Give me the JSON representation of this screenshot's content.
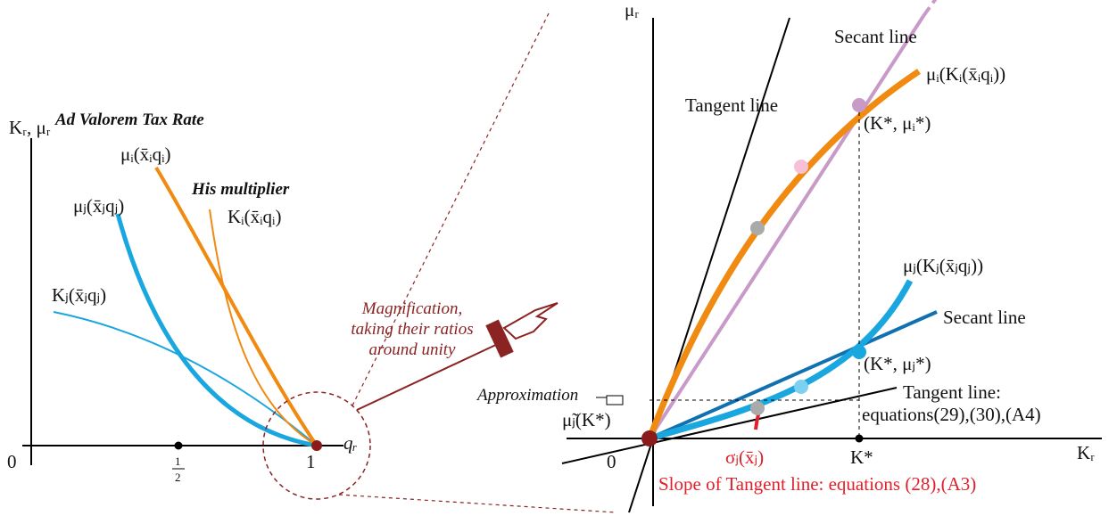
{
  "left_panel": {
    "y_axis_label": "Kᵣ, μᵣ",
    "title": "Ad Valorem Tax Rate",
    "mu_i_label": "μᵢ(x̄ᵢqᵢ)",
    "his_multiplier": "His multiplier",
    "k_i_label": "Kᵢ(x̄ᵢqᵢ)",
    "mu_j_label": "μⱼ(x̄ⱼqⱼ)",
    "k_j_label": "Kⱼ(x̄ⱼqⱼ)",
    "origin": "0",
    "half_numerator": "1",
    "half_denominator": "2",
    "one": "1",
    "x_axis_label": "qᵣ",
    "magnification": [
      "Magnification,",
      "taking their ratios",
      "around unity"
    ]
  },
  "right_panel": {
    "y_axis_label": "μᵣ",
    "secant_line_i": "Secant line",
    "mu_i_label": "μᵢ(Kᵢ(x̄ᵢqᵢ))",
    "tangent_line": "Tangent line",
    "point_i": "(K*, μᵢ*)",
    "mu_j_label": "μⱼ(Kⱼ(x̄ⱼqⱼ))",
    "secant_line_j": "Secant line",
    "point_j": "(K*, μⱼ*)",
    "approximation": "Approximation",
    "tangent_line_j": "Tangent line:",
    "tangent_equations": "equations(29),(30),(A4)",
    "mu_tilde": "μ̃ⱼ(K*)",
    "origin": "0",
    "sigma": "σⱼ(x̄ⱼ)",
    "k_star": "K*",
    "x_axis_label": "Kᵣ",
    "slope_note": "Slope of Tangent line: equations (28),(A3)"
  }
}
